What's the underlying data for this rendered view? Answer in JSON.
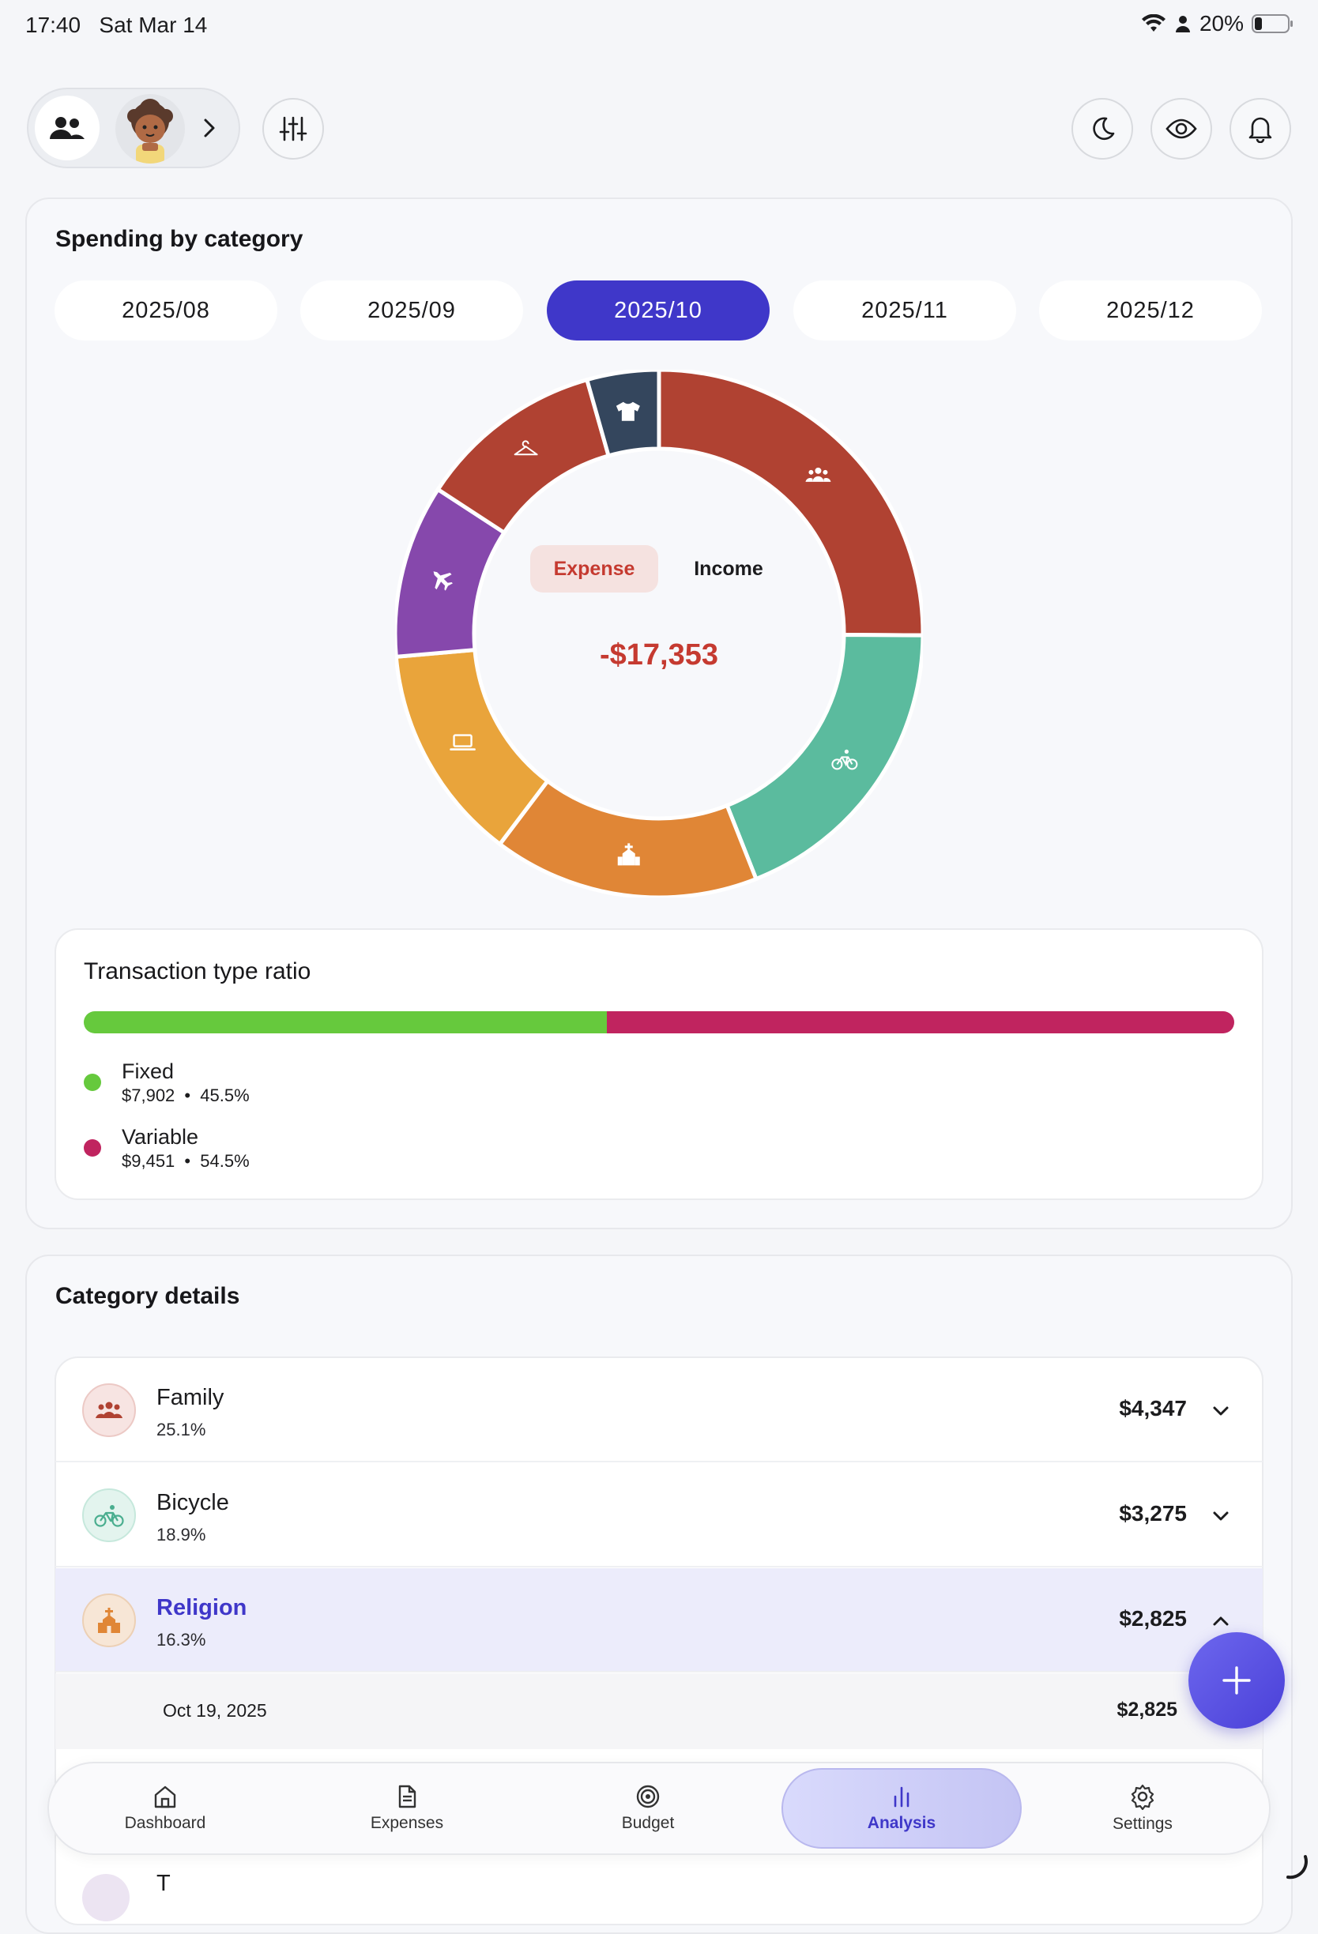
{
  "status_bar": {
    "time": "17:40",
    "date": "Sat Mar 14",
    "battery": "20%"
  },
  "colors": {
    "accent": "#3f37c9",
    "expense_red": "#c53a30",
    "fixed": "#66c93d",
    "variable": "#c0245f"
  },
  "spending": {
    "title": "Spending by category",
    "months": [
      "2025/08",
      "2025/09",
      "2025/10",
      "2025/11",
      "2025/12"
    ],
    "selected_month": "2025/10",
    "toggle": {
      "expense": "Expense",
      "income": "Income",
      "selected": "Expense"
    },
    "total": "-$17,353"
  },
  "chart_data": {
    "type": "pie",
    "categories": [
      "Family",
      "Bicycle",
      "Religion",
      "Electronics",
      "Travel",
      "Clothing",
      "Apparel"
    ],
    "values": [
      25.1,
      18.9,
      16.3,
      13.3,
      10.6,
      11.4,
      4.4
    ],
    "colors": [
      "#b04232",
      "#5bbb9e",
      "#e08636",
      "#e9a43b",
      "#8648ac",
      "#b04232",
      "#34465d"
    ],
    "icons": [
      "family-icon",
      "bicycle-icon",
      "church-icon",
      "laptop-icon",
      "airplane-icon",
      "hanger-icon",
      "tshirt-icon"
    ]
  },
  "ratio": {
    "title": "Transaction type ratio",
    "items": [
      {
        "name": "Fixed",
        "amount": "$7,902",
        "pct": "45.5%",
        "share": 45.5
      },
      {
        "name": "Variable",
        "amount": "$9,451",
        "pct": "54.5%",
        "share": 54.5
      }
    ],
    "separator": "•"
  },
  "details": {
    "title": "Category details",
    "rows": [
      {
        "name": "Family",
        "pct": "25.1%",
        "amount": "$4,347",
        "icon": "family-icon",
        "expanded": false
      },
      {
        "name": "Bicycle",
        "pct": "18.9%",
        "amount": "$3,275",
        "icon": "bicycle-icon",
        "expanded": false
      },
      {
        "name": "Religion",
        "pct": "16.3%",
        "amount": "$2,825",
        "icon": "church-icon",
        "expanded": true
      }
    ],
    "sub_row": {
      "date": "Oct 19, 2025",
      "amount": "$2,825"
    },
    "partial_row": {
      "name": "T"
    }
  },
  "nav": {
    "items": [
      {
        "label": "Dashboard",
        "icon": "home-icon"
      },
      {
        "label": "Expenses",
        "icon": "document-icon"
      },
      {
        "label": "Budget",
        "icon": "target-icon"
      },
      {
        "label": "Analysis",
        "icon": "bar-chart-icon"
      },
      {
        "label": "Settings",
        "icon": "gear-icon"
      }
    ],
    "active": "Analysis"
  }
}
